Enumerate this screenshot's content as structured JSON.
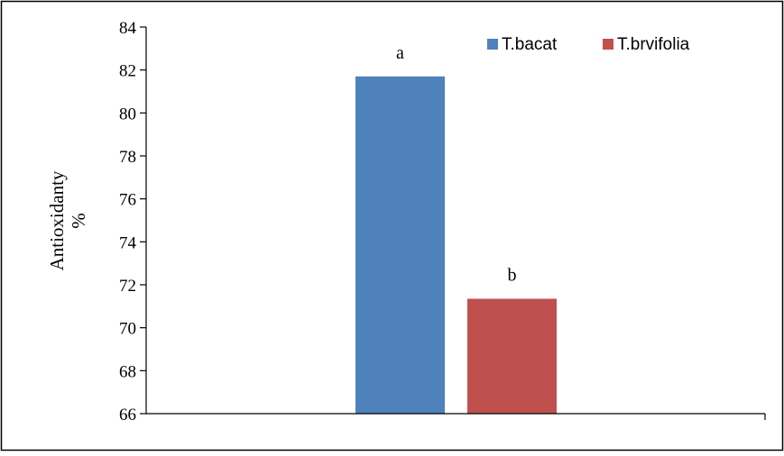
{
  "chart_data": {
    "type": "bar",
    "categories": [
      ""
    ],
    "series": [
      {
        "name": "T.bacat",
        "values": [
          81.7
        ],
        "color": "#4F81BD",
        "significance": "a"
      },
      {
        "name": "T.brvifolia",
        "values": [
          71.35
        ],
        "color": "#C0504D",
        "significance": "b"
      }
    ],
    "title": "",
    "xlabel": "",
    "ylabel": [
      "Antioxidanty",
      "%"
    ],
    "ylim": [
      66,
      84
    ],
    "yticks": [
      66,
      68,
      70,
      72,
      74,
      76,
      78,
      80,
      82,
      84
    ],
    "grid": false,
    "legend_position": "top-right"
  }
}
